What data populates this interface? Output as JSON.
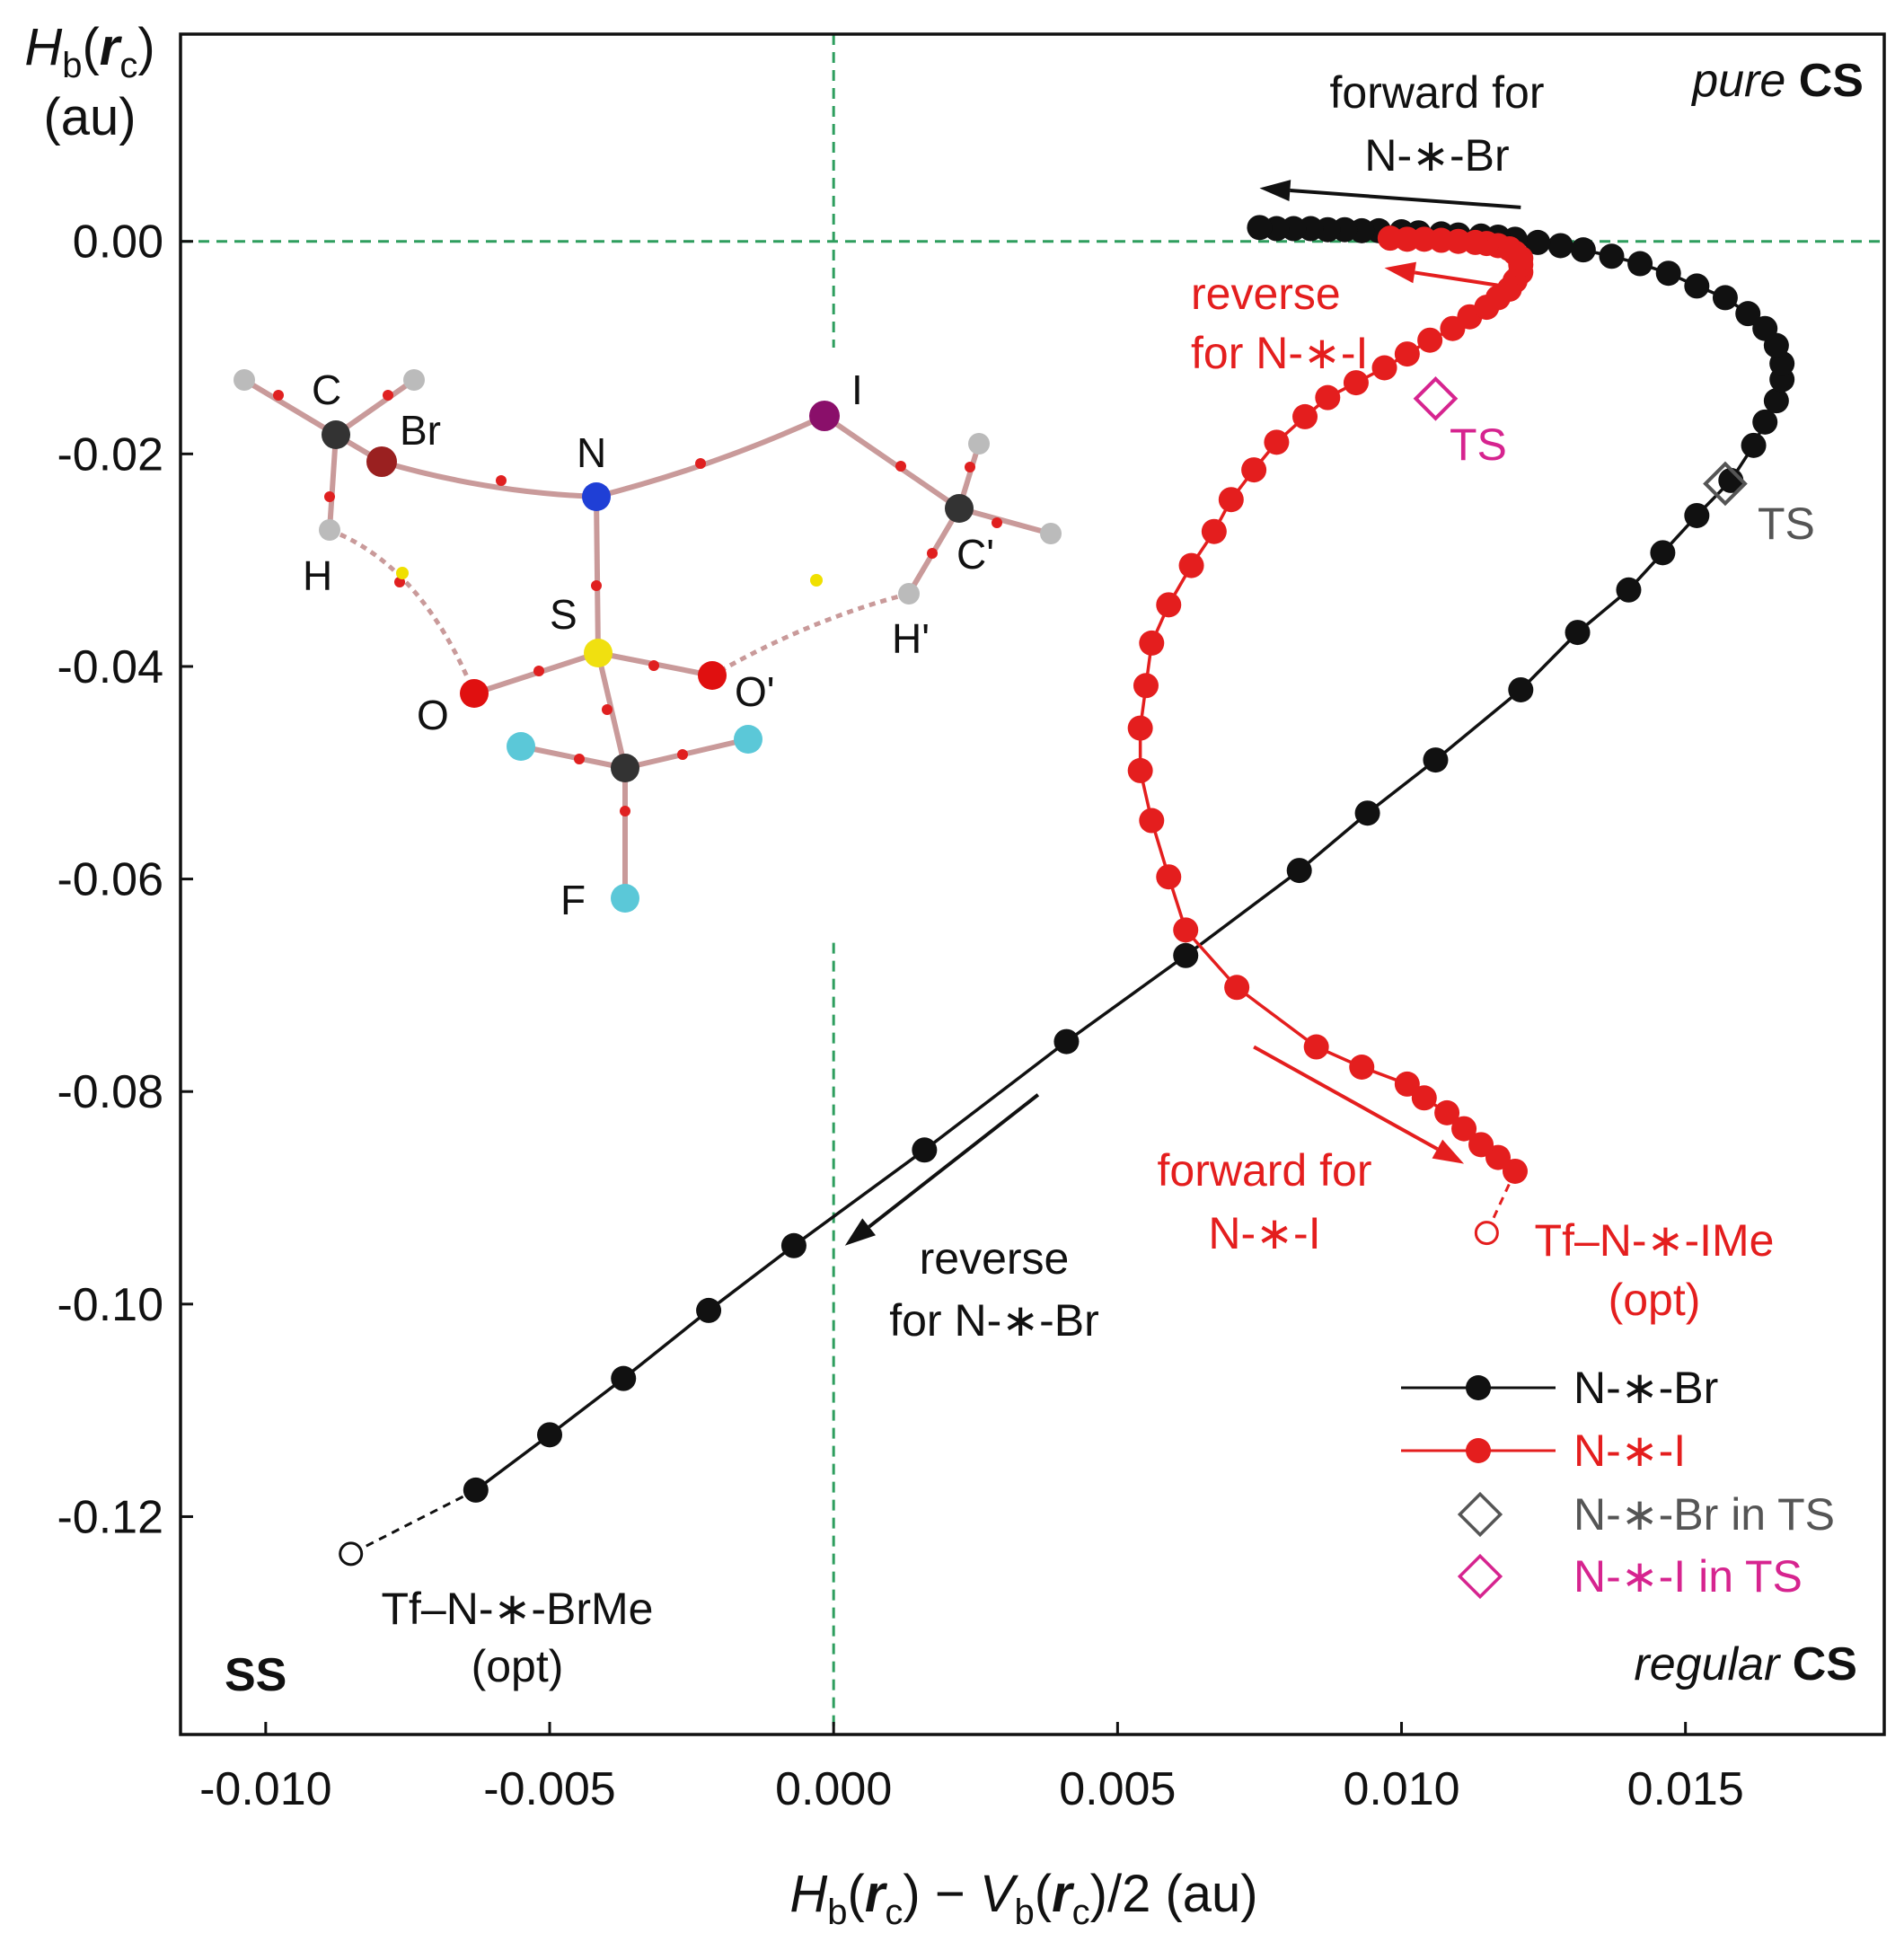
{
  "chart_data": {
    "type": "scatter",
    "title": "",
    "xlabel": {
      "p1": "H",
      "p1sub": "b",
      "p2": "(",
      "p3": "r",
      "p3sub": "c",
      "p4": ") − ",
      "p5": "V",
      "p5sub": "b",
      "p6": "(",
      "p7": "r",
      "p7sub": "c",
      "p8": ")/2 (au)"
    },
    "ylabel": {
      "p1": "H",
      "p1sub": "b",
      "p2": "(",
      "p3": "r",
      "p3sub": "c",
      "p4": ")",
      "line2": "(au)"
    },
    "xlim": [
      -0.0115,
      0.0185
    ],
    "ylim": [
      -0.1405,
      0.0195
    ],
    "xticks": [
      "-0.010",
      "-0.005",
      "0.000",
      "0.005",
      "0.010",
      "0.015"
    ],
    "yticks": [
      "0.00",
      "-0.02",
      "-0.04",
      "-0.06",
      "-0.08",
      "-0.10",
      "-0.12"
    ],
    "grid": false,
    "colors": {
      "br": "#111111",
      "i": "#e41e1e",
      "ts_br": "#555555",
      "ts_i": "#d6248f",
      "guide": "#2e9e5e"
    },
    "series": [
      {
        "name": "N-∗-Br",
        "color": "#111111",
        "x": [
          -0.0063,
          -0.005,
          -0.0037,
          -0.0022,
          -0.0007,
          0.0016,
          0.0041,
          0.0062,
          0.0082,
          0.0094,
          0.0106,
          0.0121,
          0.0131,
          0.014,
          0.0146,
          0.0152,
          0.0158,
          0.0162,
          0.0164,
          0.0166,
          0.0167,
          0.0167,
          0.0166,
          0.0164,
          0.0161,
          0.0157,
          0.0152,
          0.0147,
          0.0142,
          0.0137,
          0.0132,
          0.0128,
          0.0124,
          0.012,
          0.0117,
          0.0114,
          0.011,
          0.0107,
          0.0103,
          0.01,
          0.0096,
          0.0093,
          0.009,
          0.0087,
          0.0084,
          0.0081,
          0.0078,
          0.0075
        ],
        "y": [
          -0.1175,
          -0.1123,
          -0.107,
          -0.1006,
          -0.0945,
          -0.0855,
          -0.0753,
          -0.0672,
          -0.0592,
          -0.0538,
          -0.0488,
          -0.0422,
          -0.0368,
          -0.0328,
          -0.0293,
          -0.0258,
          -0.0225,
          -0.0192,
          -0.017,
          -0.015,
          -0.013,
          -0.0115,
          -0.0098,
          -0.0082,
          -0.0068,
          -0.0053,
          -0.0042,
          -0.003,
          -0.0021,
          -0.0014,
          -0.0008,
          -0.0004,
          -0.0001,
          0.0002,
          0.0004,
          0.0005,
          0.0006,
          0.0007,
          0.0008,
          0.0009,
          0.001,
          0.001,
          0.0011,
          0.0011,
          0.0012,
          0.0012,
          0.0012,
          0.0013
        ]
      },
      {
        "name": "N-∗-I",
        "color": "#e41e1e",
        "x": [
          0.012,
          0.0117,
          0.0114,
          0.0111,
          0.0108,
          0.0104,
          0.0101,
          0.0093,
          0.0085,
          0.0071,
          0.0062,
          0.0059,
          0.0056,
          0.0054,
          0.0054,
          0.0055,
          0.0056,
          0.0059,
          0.0063,
          0.0067,
          0.007,
          0.0074,
          0.0078,
          0.0083,
          0.0087,
          0.0092,
          0.0097,
          0.0101,
          0.0105,
          0.0109,
          0.0112,
          0.0115,
          0.0117,
          0.0119,
          0.012,
          0.0121,
          0.0121,
          0.0121,
          0.012,
          0.0119,
          0.0117,
          0.0115,
          0.0113,
          0.011,
          0.0107,
          0.0104,
          0.0101,
          0.0098
        ],
        "y": [
          -0.0875,
          -0.0862,
          -0.085,
          -0.0835,
          -0.082,
          -0.0806,
          -0.0793,
          -0.0777,
          -0.0758,
          -0.0702,
          -0.0648,
          -0.0598,
          -0.0545,
          -0.0498,
          -0.0458,
          -0.0418,
          -0.0378,
          -0.0342,
          -0.0305,
          -0.0273,
          -0.0243,
          -0.0215,
          -0.0189,
          -0.0165,
          -0.0147,
          -0.0133,
          -0.0119,
          -0.0106,
          -0.0093,
          -0.0082,
          -0.0071,
          -0.0062,
          -0.0053,
          -0.0045,
          -0.0037,
          -0.0029,
          -0.0022,
          -0.0016,
          -0.0011,
          -0.0007,
          -0.0004,
          -0.0002,
          -0.0001,
          0.0,
          0.0001,
          0.0002,
          0.0002,
          0.0003
        ]
      }
    ],
    "opt_points": [
      {
        "name": "Tf–N-∗-BrMe (opt)",
        "x": -0.0085,
        "y": -0.1235,
        "from": [
          -0.0063,
          -0.1175
        ],
        "color": "#111111"
      },
      {
        "name": "Tf–N-∗-IMe (opt)",
        "x": 0.0115,
        "y": -0.0933,
        "from": [
          0.012,
          -0.0875
        ],
        "color": "#e41e1e"
      }
    ],
    "ts_points": [
      {
        "name": "N-∗-Br in TS",
        "x": 0.0157,
        "y": -0.0228,
        "color": "#555555"
      },
      {
        "name": "N-∗-I in TS",
        "x": 0.0106,
        "y": -0.0148,
        "color": "#d6248f"
      }
    ],
    "guides": {
      "x": 0.0,
      "y": 0.0,
      "x_gap": [
        -0.066,
        -0.01
      ]
    },
    "legend": {
      "position": "bottom-right",
      "entries": [
        "N-∗-Br",
        "N-∗-I",
        "N-∗-Br in TS",
        "N-∗-I in TS"
      ]
    },
    "annotations": {
      "pure_cs": {
        "p1": "pure",
        "p2": "CS"
      },
      "regular_cs": {
        "p1": "regular",
        "p2": "CS"
      },
      "ss": "SS",
      "forward_br": {
        "line1": "forward for",
        "line2": "N-∗-Br"
      },
      "reverse_i": {
        "line1": "reverse",
        "line2": "for N-∗-I"
      },
      "forward_i": {
        "line1": "forward for",
        "line2": "N-∗-I"
      },
      "reverse_br": {
        "line1": "reverse",
        "line2": "for N-∗-Br"
      },
      "ts_i_label": "TS",
      "ts_br_label": "TS",
      "opt_i": {
        "line1": "Tf–N-∗-IMe",
        "line2": "(opt)"
      },
      "opt_br": {
        "line1": "Tf–N-∗-BrMe",
        "line2": "(opt)"
      }
    },
    "arrows": [
      {
        "name": "arrow-forward-br",
        "from": [
          0.0121,
          0.0032
        ],
        "to": [
          0.0075,
          0.005
        ],
        "color": "#111111"
      },
      {
        "name": "arrow-reverse-i",
        "from": [
          0.0119,
          -0.0043
        ],
        "to": [
          0.0097,
          -0.0025
        ],
        "color": "#e41e1e"
      },
      {
        "name": "arrow-forward-i",
        "from": [
          0.0074,
          -0.0758
        ],
        "to": [
          0.0111,
          -0.0868
        ],
        "color": "#e41e1e"
      },
      {
        "name": "arrow-reverse-br",
        "from": [
          0.0036,
          -0.0803
        ],
        "to": [
          0.0002,
          -0.0945
        ],
        "color": "#111111"
      }
    ]
  },
  "molecule": {
    "labels": {
      "C": "C",
      "Br": "Br",
      "N": "N",
      "I": "I",
      "H": "H",
      "S": "S",
      "C2": "C'",
      "H2": "H'",
      "O": "O",
      "O2": "O'",
      "F": "F"
    }
  }
}
